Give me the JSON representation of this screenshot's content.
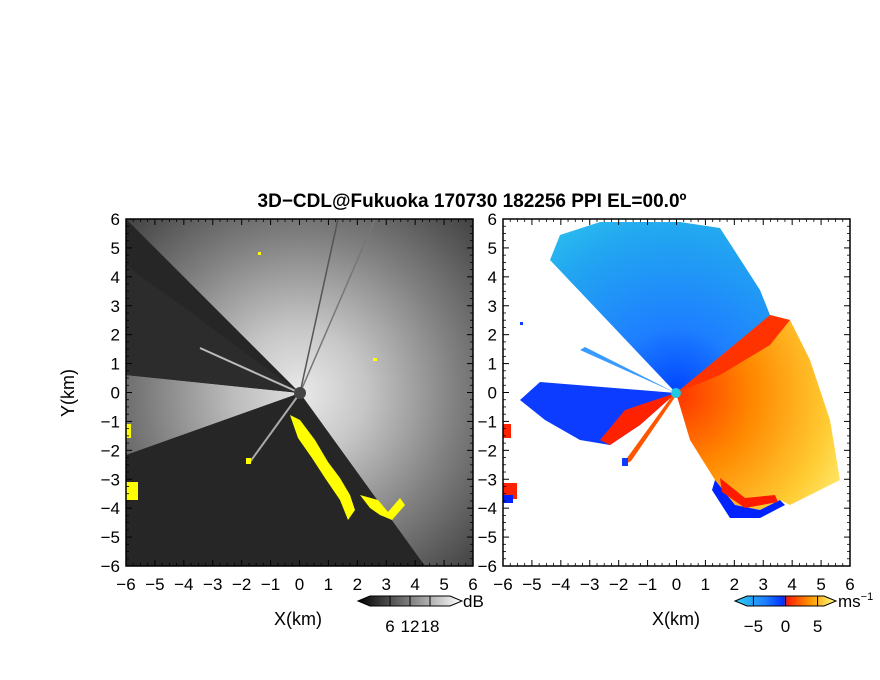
{
  "title": "3D−CDL@Fukuoka 170730 182256 PPI EL=00.0º",
  "chart_data": [
    {
      "type": "heatmap",
      "quantity": "reflectivity",
      "xlabel": "X(km)",
      "ylabel": "Y(km)",
      "xlim": [
        -6,
        6
      ],
      "ylim": [
        -6,
        6
      ],
      "xticks": [
        "−6",
        "−5",
        "−4",
        "−3",
        "−2",
        "−1",
        "0",
        "1",
        "2",
        "3",
        "4",
        "5",
        "6"
      ],
      "yticks": [
        "6",
        "5",
        "4",
        "3",
        "2",
        "1",
        "0",
        "−1",
        "−2",
        "−3",
        "−4",
        "−5",
        "−6"
      ],
      "colorbar": {
        "unit": "dB",
        "ticks": [
          "6",
          "12",
          "18"
        ],
        "tick_values": [
          6,
          12,
          18
        ],
        "range": [
          0,
          24
        ]
      },
      "colors": {
        "low": "#1a1a1a",
        "high": "#ffffff",
        "highlight": "#ffff00"
      }
    },
    {
      "type": "heatmap",
      "quantity": "doppler_velocity",
      "xlabel": "X(km)",
      "ylabel": "Y(km)",
      "xlim": [
        -6,
        6
      ],
      "ylim": [
        -6,
        6
      ],
      "xticks": [
        "−6",
        "−5",
        "−4",
        "−3",
        "−2",
        "−1",
        "0",
        "1",
        "2",
        "3",
        "4",
        "5",
        "6"
      ],
      "yticks": [
        "6",
        "5",
        "4",
        "3",
        "2",
        "1",
        "0",
        "−1",
        "−2",
        "−3",
        "−4",
        "−5",
        "−6"
      ],
      "colorbar": {
        "unit": "ms",
        "unit_exp": "−1",
        "ticks": [
          "−5",
          "0",
          "5"
        ],
        "tick_values": [
          -5,
          0,
          5
        ],
        "range": [
          -6,
          6
        ]
      },
      "colors": {
        "negative": "#1e90ff",
        "near_zero_neg": "#1040ff",
        "near_zero_pos": "#ff2000",
        "positive": "#ffa500",
        "strong_positive": "#ffff80"
      }
    }
  ]
}
